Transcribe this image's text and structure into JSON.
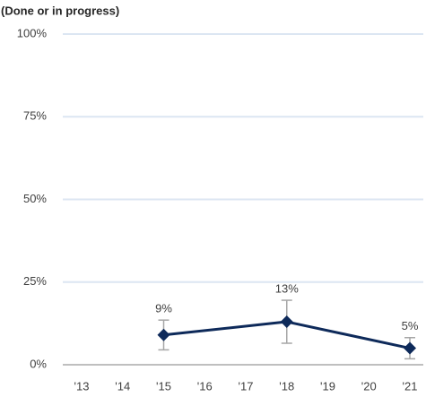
{
  "chart_data": {
    "type": "line",
    "title": "(Done or in progress)",
    "categories": [
      "'13",
      "'14",
      "'15",
      "'16",
      "'17",
      "'18",
      "'19",
      "'20",
      "'21"
    ],
    "series": [
      {
        "color": "#0e2a5a",
        "values": [
          null,
          null,
          9,
          null,
          null,
          13,
          null,
          null,
          5
        ],
        "value_labels": [
          null,
          null,
          "9%",
          null,
          null,
          "13%",
          null,
          null,
          "5%"
        ],
        "errors": [
          null,
          null,
          4.5,
          null,
          null,
          6.5,
          null,
          null,
          3.2
        ],
        "error_color": "#a6a6a6"
      }
    ],
    "ylim": [
      0,
      100
    ],
    "yticks": [
      {
        "value": 0,
        "label": "0%"
      },
      {
        "value": 25,
        "label": "25%"
      },
      {
        "value": 50,
        "label": "50%"
      },
      {
        "value": 75,
        "label": "75%"
      },
      {
        "value": 100,
        "label": "100%"
      }
    ],
    "grid": true
  }
}
